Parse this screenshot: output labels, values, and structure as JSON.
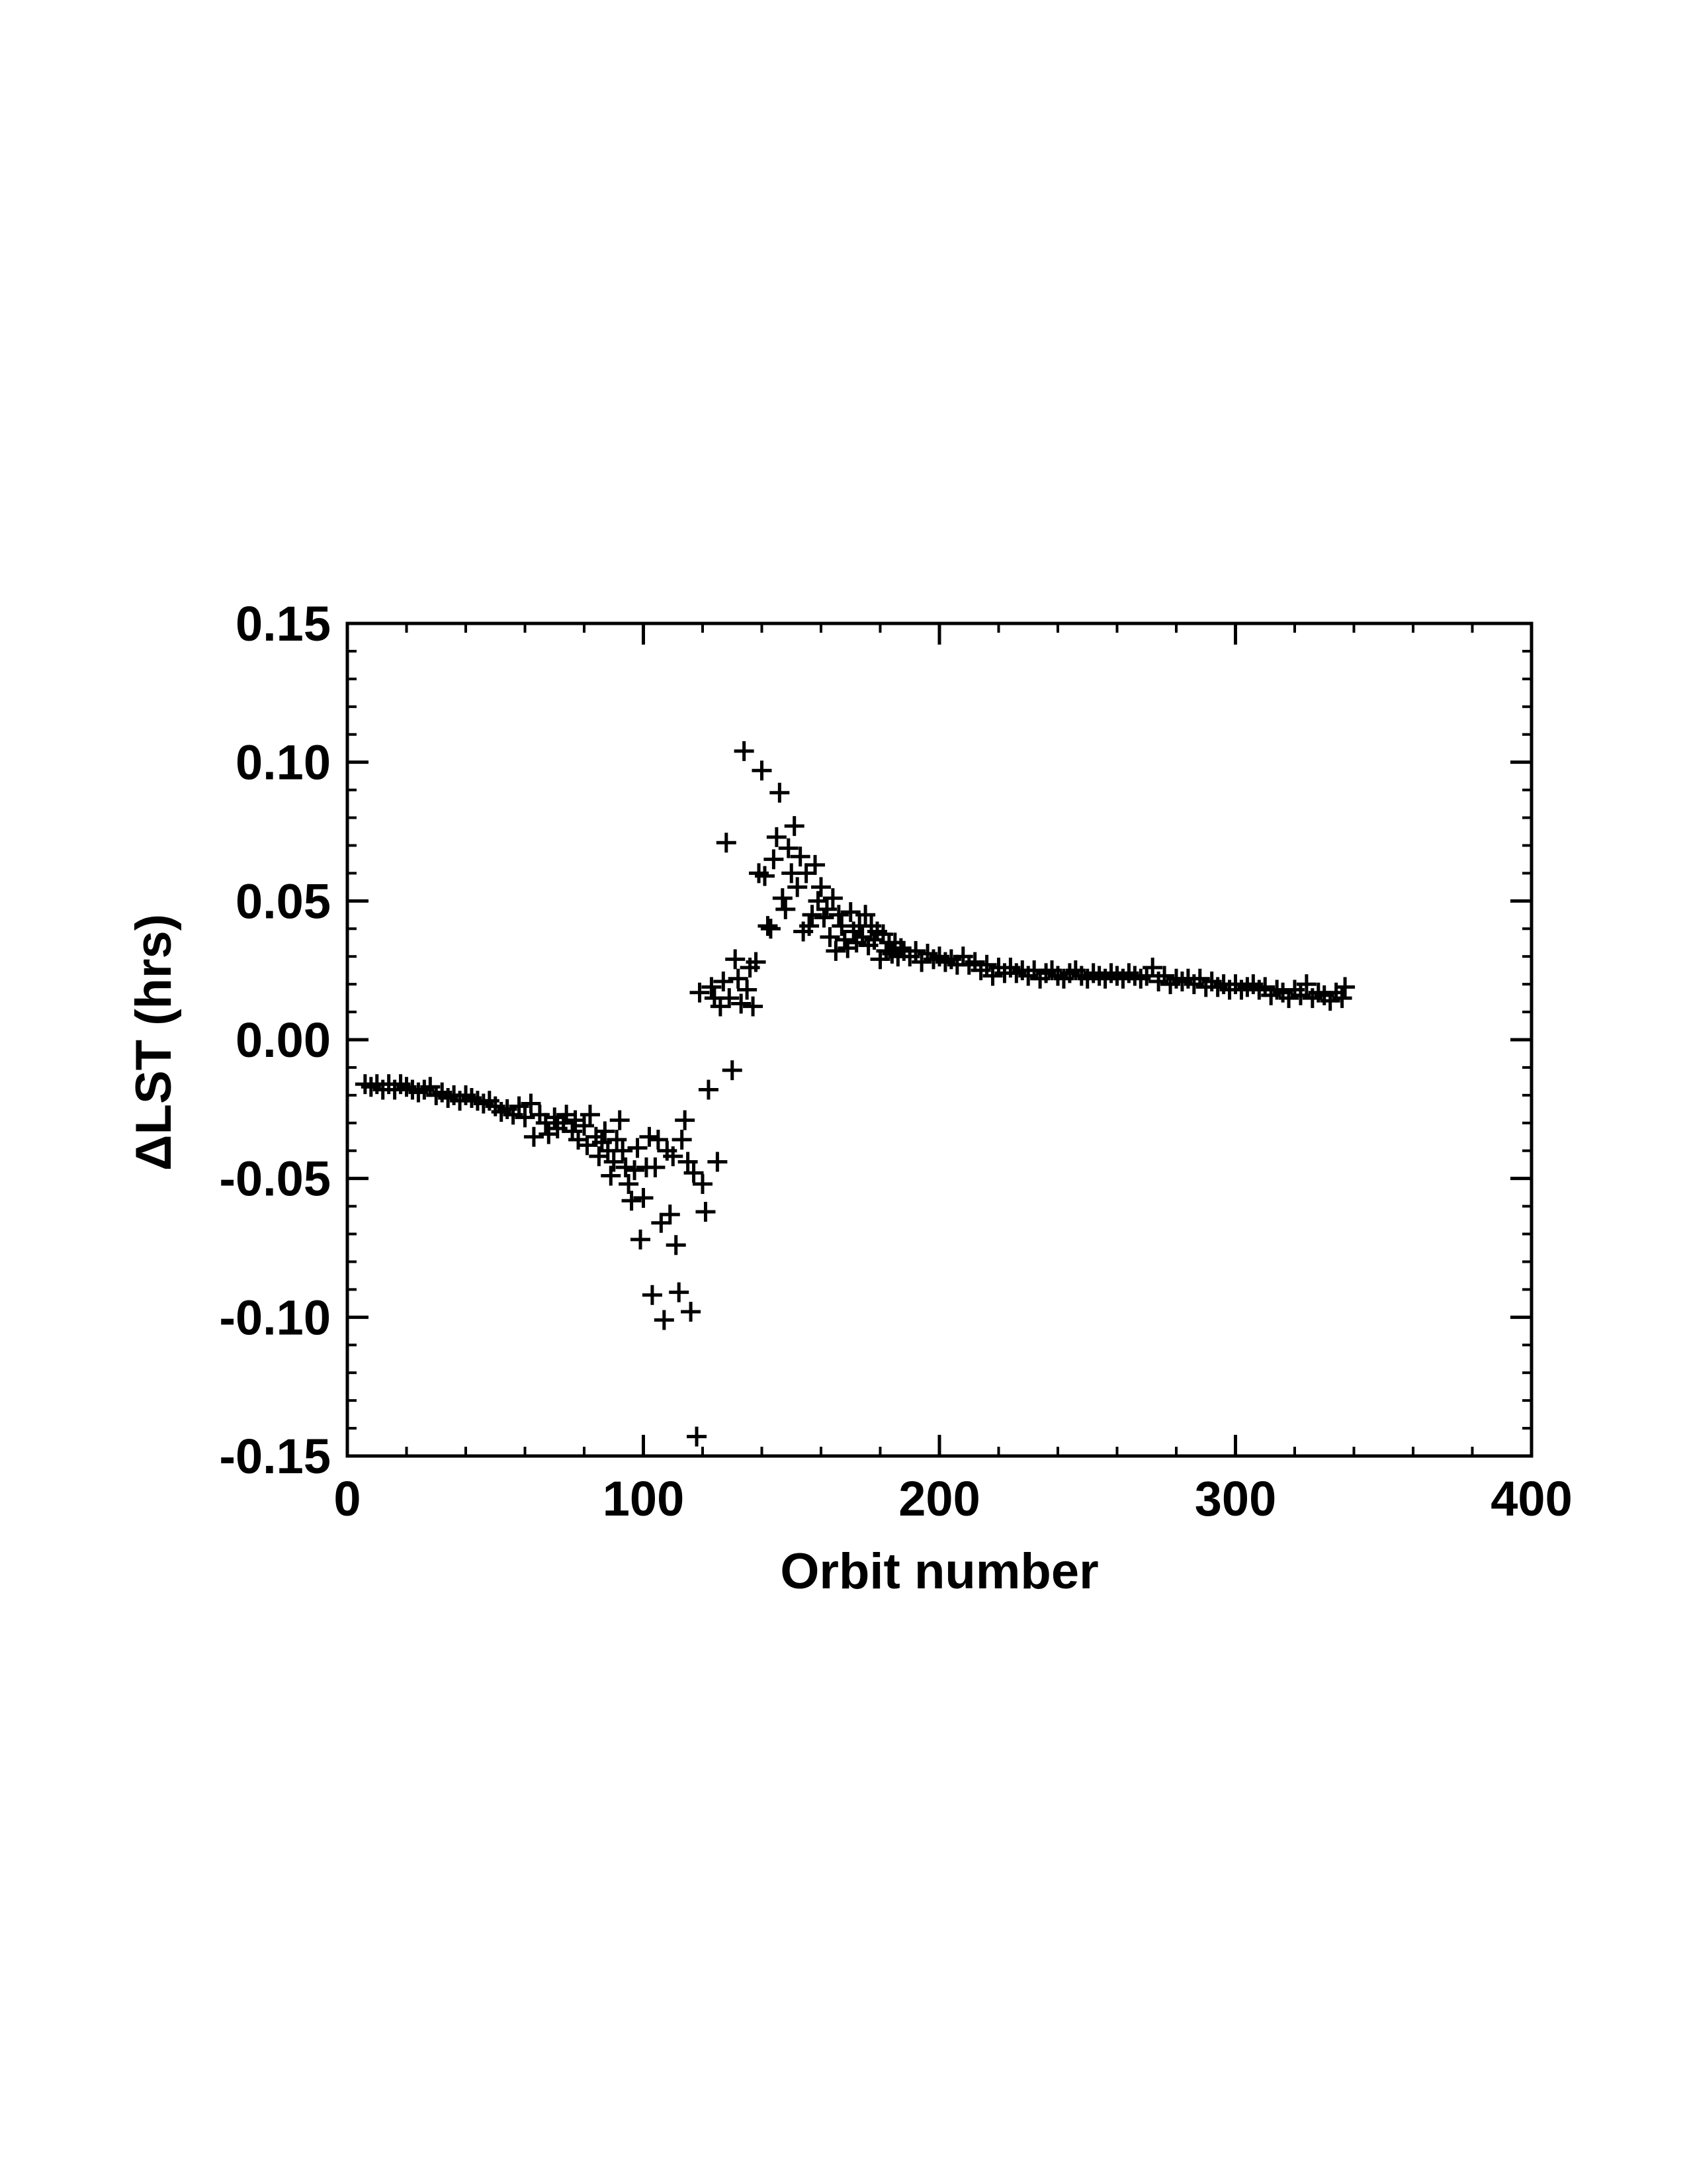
{
  "chart_data": {
    "type": "scatter",
    "marker": "plus",
    "marker_color": "#000000",
    "title": "",
    "xlabel": "Orbit number",
    "ylabel": "ΔLST (hrs)",
    "xlim": [
      0,
      400
    ],
    "ylim": [
      -0.15,
      0.15
    ],
    "grid": false,
    "x_ticks": [
      0,
      100,
      200,
      300,
      400
    ],
    "x_tick_labels": [
      "0",
      "100",
      "200",
      "300",
      "400"
    ],
    "y_ticks": [
      -0.15,
      -0.1,
      -0.05,
      0.0,
      0.05,
      0.1,
      0.15
    ],
    "y_tick_labels": [
      "-0.15",
      "-0.10",
      "-0.05",
      "0.00",
      "0.05",
      "0.10",
      "0.15"
    ],
    "points": [
      [
        6,
        -0.016
      ],
      [
        8,
        -0.017
      ],
      [
        10,
        -0.016
      ],
      [
        12,
        -0.018
      ],
      [
        14,
        -0.016
      ],
      [
        16,
        -0.018
      ],
      [
        18,
        -0.016
      ],
      [
        20,
        -0.017
      ],
      [
        22,
        -0.018
      ],
      [
        24,
        -0.019
      ],
      [
        26,
        -0.018
      ],
      [
        28,
        -0.017
      ],
      [
        30,
        -0.02
      ],
      [
        32,
        -0.019
      ],
      [
        34,
        -0.021
      ],
      [
        36,
        -0.02
      ],
      [
        38,
        -0.022
      ],
      [
        40,
        -0.02
      ],
      [
        42,
        -0.021
      ],
      [
        44,
        -0.022
      ],
      [
        46,
        -0.023
      ],
      [
        48,
        -0.022
      ],
      [
        50,
        -0.024
      ],
      [
        52,
        -0.026
      ],
      [
        54,
        -0.025
      ],
      [
        56,
        -0.027
      ],
      [
        58,
        -0.024
      ],
      [
        60,
        -0.028
      ],
      [
        62,
        -0.023
      ],
      [
        63,
        -0.035
      ],
      [
        65,
        -0.027
      ],
      [
        67,
        -0.03
      ],
      [
        68,
        -0.034
      ],
      [
        70,
        -0.028
      ],
      [
        71,
        -0.032
      ],
      [
        73,
        -0.03
      ],
      [
        74,
        -0.027
      ],
      [
        76,
        -0.033
      ],
      [
        77,
        -0.029
      ],
      [
        78,
        -0.036
      ],
      [
        80,
        -0.031
      ],
      [
        81,
        -0.038
      ],
      [
        82,
        -0.027
      ],
      [
        84,
        -0.035
      ],
      [
        85,
        -0.042
      ],
      [
        86,
        -0.037
      ],
      [
        87,
        -0.033
      ],
      [
        88,
        -0.04
      ],
      [
        89,
        -0.049
      ],
      [
        90,
        -0.044
      ],
      [
        91,
        -0.036
      ],
      [
        92,
        -0.029
      ],
      [
        93,
        -0.04
      ],
      [
        94,
        -0.046
      ],
      [
        95,
        -0.052
      ],
      [
        96,
        -0.058
      ],
      [
        97,
        -0.047
      ],
      [
        98,
        -0.039
      ],
      [
        99,
        -0.072
      ],
      [
        100,
        -0.057
      ],
      [
        101,
        -0.046
      ],
      [
        102,
        -0.035
      ],
      [
        103,
        -0.092
      ],
      [
        104,
        -0.046
      ],
      [
        105,
        -0.036
      ],
      [
        106,
        -0.066
      ],
      [
        107,
        -0.101
      ],
      [
        108,
        -0.04
      ],
      [
        109,
        -0.063
      ],
      [
        110,
        -0.042
      ],
      [
        111,
        -0.074
      ],
      [
        112,
        -0.091
      ],
      [
        113,
        -0.036
      ],
      [
        114,
        -0.029
      ],
      [
        115,
        -0.044
      ],
      [
        116,
        -0.098
      ],
      [
        117,
        -0.048
      ],
      [
        118,
        -0.143
      ],
      [
        119,
        0.017
      ],
      [
        120,
        -0.052
      ],
      [
        121,
        -0.062
      ],
      [
        122,
        -0.018
      ],
      [
        123,
        0.019
      ],
      [
        124,
        0.015
      ],
      [
        125,
        -0.044
      ],
      [
        126,
        0.012
      ],
      [
        127,
        0.021
      ],
      [
        128,
        0.071
      ],
      [
        129,
        0.015
      ],
      [
        130,
        -0.011
      ],
      [
        131,
        0.029
      ],
      [
        132,
        0.022
      ],
      [
        133,
        0.013
      ],
      [
        134,
        0.104
      ],
      [
        135,
        0.018
      ],
      [
        136,
        0.026
      ],
      [
        137,
        0.012
      ],
      [
        138,
        0.028
      ],
      [
        139,
        0.06
      ],
      [
        140,
        0.097
      ],
      [
        141,
        0.059
      ],
      [
        142,
        0.041
      ],
      [
        143,
        0.04
      ],
      [
        144,
        0.065
      ],
      [
        145,
        0.073
      ],
      [
        146,
        0.089
      ],
      [
        147,
        0.051
      ],
      [
        148,
        0.047
      ],
      [
        149,
        0.069
      ],
      [
        150,
        0.06
      ],
      [
        151,
        0.077
      ],
      [
        152,
        0.055
      ],
      [
        153,
        0.066
      ],
      [
        154,
        0.039
      ],
      [
        155,
        0.06
      ],
      [
        156,
        0.041
      ],
      [
        157,
        0.045
      ],
      [
        158,
        0.063
      ],
      [
        159,
        0.05
      ],
      [
        160,
        0.055
      ],
      [
        161,
        0.044
      ],
      [
        162,
        0.047
      ],
      [
        163,
        0.037
      ],
      [
        164,
        0.051
      ],
      [
        165,
        0.032
      ],
      [
        166,
        0.045
      ],
      [
        167,
        0.041
      ],
      [
        168,
        0.036
      ],
      [
        169,
        0.033
      ],
      [
        170,
        0.046
      ],
      [
        171,
        0.039
      ],
      [
        172,
        0.035
      ],
      [
        173,
        0.041
      ],
      [
        174,
        0.037
      ],
      [
        175,
        0.045
      ],
      [
        176,
        0.034
      ],
      [
        177,
        0.041
      ],
      [
        178,
        0.036
      ],
      [
        179,
        0.039
      ],
      [
        180,
        0.029
      ],
      [
        181,
        0.038
      ],
      [
        182,
        0.032
      ],
      [
        183,
        0.035
      ],
      [
        184,
        0.031
      ],
      [
        185,
        0.035
      ],
      [
        186,
        0.03
      ],
      [
        187,
        0.033
      ],
      [
        188,
        0.032
      ],
      [
        190,
        0.03
      ],
      [
        192,
        0.032
      ],
      [
        194,
        0.028
      ],
      [
        196,
        0.031
      ],
      [
        198,
        0.029
      ],
      [
        200,
        0.03
      ],
      [
        202,
        0.028
      ],
      [
        204,
        0.029
      ],
      [
        206,
        0.027
      ],
      [
        208,
        0.03
      ],
      [
        210,
        0.027
      ],
      [
        212,
        0.028
      ],
      [
        214,
        0.025
      ],
      [
        216,
        0.027
      ],
      [
        218,
        0.023
      ],
      [
        220,
        0.026
      ],
      [
        222,
        0.024
      ],
      [
        224,
        0.026
      ],
      [
        226,
        0.024
      ],
      [
        228,
        0.025
      ],
      [
        230,
        0.023
      ],
      [
        232,
        0.025
      ],
      [
        234,
        0.022
      ],
      [
        236,
        0.024
      ],
      [
        238,
        0.025
      ],
      [
        240,
        0.023
      ],
      [
        242,
        0.022
      ],
      [
        244,
        0.024
      ],
      [
        246,
        0.025
      ],
      [
        248,
        0.023
      ],
      [
        250,
        0.022
      ],
      [
        252,
        0.024
      ],
      [
        254,
        0.023
      ],
      [
        256,
        0.022
      ],
      [
        258,
        0.024
      ],
      [
        260,
        0.023
      ],
      [
        262,
        0.022
      ],
      [
        264,
        0.024
      ],
      [
        266,
        0.023
      ],
      [
        268,
        0.022
      ],
      [
        270,
        0.023
      ],
      [
        272,
        0.026
      ],
      [
        274,
        0.021
      ],
      [
        276,
        0.023
      ],
      [
        278,
        0.02
      ],
      [
        280,
        0.022
      ],
      [
        282,
        0.021
      ],
      [
        284,
        0.022
      ],
      [
        286,
        0.02
      ],
      [
        288,
        0.022
      ],
      [
        290,
        0.019
      ],
      [
        292,
        0.021
      ],
      [
        294,
        0.019
      ],
      [
        296,
        0.02
      ],
      [
        298,
        0.018
      ],
      [
        300,
        0.02
      ],
      [
        302,
        0.018
      ],
      [
        304,
        0.019
      ],
      [
        306,
        0.02
      ],
      [
        308,
        0.018
      ],
      [
        310,
        0.019
      ],
      [
        312,
        0.016
      ],
      [
        314,
        0.018
      ],
      [
        316,
        0.017
      ],
      [
        318,
        0.015
      ],
      [
        320,
        0.018
      ],
      [
        322,
        0.016
      ],
      [
        324,
        0.02
      ],
      [
        326,
        0.015
      ],
      [
        328,
        0.017
      ],
      [
        330,
        0.016
      ],
      [
        332,
        0.014
      ],
      [
        334,
        0.017
      ],
      [
        336,
        0.015
      ],
      [
        337,
        0.019
      ]
    ]
  }
}
